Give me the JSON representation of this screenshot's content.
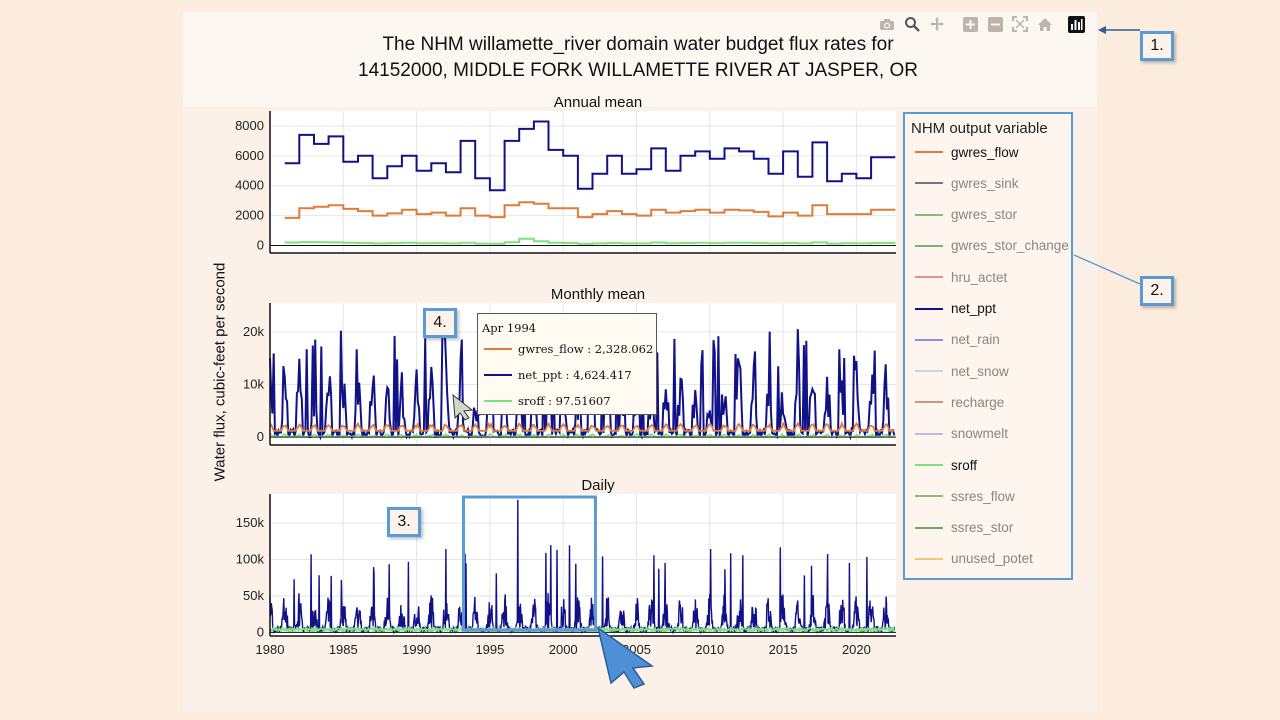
{
  "title_line1": "The NHM willamette_river domain water budget flux rates for",
  "title_line2": "14152000, MIDDLE FORK WILLAMETTE RIVER AT JASPER, OR",
  "ylabel": "Water flux, cubic-feet per second",
  "modebar": {
    "icons": [
      "camera-icon",
      "zoom-icon",
      "pan-icon",
      "zoom-in-icon",
      "zoom-out-icon",
      "autoscale-icon",
      "home-icon",
      "chart-toggle-icon"
    ]
  },
  "legend": {
    "title": "NHM output variable",
    "items": [
      {
        "label": "gwres_flow",
        "color": "#e07b39",
        "active": true
      },
      {
        "label": "gwres_sink",
        "color": "#777777",
        "active": false
      },
      {
        "label": "gwres_stor",
        "color": "#8ab87a",
        "active": false
      },
      {
        "label": "gwres_stor_change",
        "color": "#7fae7a",
        "active": false
      },
      {
        "label": "hru_actet",
        "color": "#e9908f",
        "active": false
      },
      {
        "label": "net_ppt",
        "color": "#111188",
        "active": true
      },
      {
        "label": "net_rain",
        "color": "#8b8fe3",
        "active": false
      },
      {
        "label": "net_snow",
        "color": "#c6d6ea",
        "active": false
      },
      {
        "label": "recharge",
        "color": "#d3927f",
        "active": false
      },
      {
        "label": "snowmelt",
        "color": "#c5b4e4",
        "active": false
      },
      {
        "label": "sroff",
        "color": "#7de27d",
        "active": true
      },
      {
        "label": "ssres_flow",
        "color": "#8cb98c",
        "active": false
      },
      {
        "label": "ssres_stor",
        "color": "#6fa56f",
        "active": false
      },
      {
        "label": "unused_potet",
        "color": "#f2c77a",
        "active": false
      }
    ]
  },
  "callouts": [
    "1.",
    "2.",
    "3.",
    "4."
  ],
  "tooltip": {
    "title": "Apr 1994",
    "rows": [
      {
        "label": "gwres_flow : 2,328.062",
        "color": "#e07b39"
      },
      {
        "label": "net_ppt : 4,624.417",
        "color": "#111188"
      },
      {
        "label": "sroff : 97.51607",
        "color": "#7de27d"
      }
    ]
  },
  "chart_data": [
    {
      "type": "line",
      "title": "Annual mean",
      "xlim": [
        1980,
        2022.7
      ],
      "ylim": [
        -500,
        9000
      ],
      "yticks": [
        0,
        2000,
        4000,
        6000,
        8000
      ],
      "ytick_labels": [
        "0",
        "2000",
        "4000",
        "6000",
        "8000"
      ],
      "step": true,
      "x": [
        1981,
        1982,
        1983,
        1984,
        1985,
        1986,
        1987,
        1988,
        1989,
        1990,
        1991,
        1992,
        1993,
        1994,
        1995,
        1996,
        1997,
        1998,
        1999,
        2000,
        2001,
        2002,
        2003,
        2004,
        2005,
        2006,
        2007,
        2008,
        2009,
        2010,
        2011,
        2012,
        2013,
        2014,
        2015,
        2016,
        2017,
        2018,
        2019,
        2020,
        2021,
        2022
      ],
      "series": [
        {
          "name": "net_ppt",
          "color": "#111188",
          "values": [
            5500,
            7400,
            6800,
            7300,
            5600,
            6000,
            4500,
            5300,
            6000,
            5000,
            5500,
            4900,
            7000,
            4500,
            3700,
            7000,
            7800,
            8300,
            6400,
            6000,
            3800,
            4800,
            6000,
            4800,
            5100,
            6500,
            5000,
            6000,
            6300,
            5800,
            6500,
            6300,
            5800,
            4800,
            6300,
            4600,
            6900,
            4300,
            4800,
            4500,
            5900,
            5900
          ],
          "hover": true
        },
        {
          "name": "gwres_flow",
          "color": "#e07b39",
          "values": [
            1850,
            2500,
            2600,
            2700,
            2450,
            2300,
            2000,
            2150,
            2400,
            2100,
            2200,
            2000,
            2500,
            2000,
            1900,
            2700,
            2900,
            2800,
            2500,
            2500,
            1900,
            2100,
            2300,
            2100,
            2000,
            2400,
            2200,
            2300,
            2400,
            2200,
            2400,
            2350,
            2250,
            1950,
            2200,
            2000,
            2700,
            2100,
            2100,
            2100,
            2400,
            2400
          ],
          "hover": true
        },
        {
          "name": "sroff",
          "color": "#7de27d",
          "values": [
            200,
            230,
            220,
            210,
            180,
            170,
            140,
            160,
            180,
            150,
            160,
            140,
            190,
            130,
            120,
            220,
            450,
            280,
            180,
            170,
            110,
            140,
            170,
            140,
            140,
            200,
            150,
            170,
            180,
            160,
            190,
            180,
            170,
            140,
            170,
            140,
            210,
            130,
            150,
            140,
            170,
            170
          ],
          "hover": true
        }
      ]
    },
    {
      "type": "line",
      "title": "Monthly mean",
      "xlim": [
        1980,
        2022.7
      ],
      "ylim": [
        -1500,
        25500
      ],
      "yticks": [
        0,
        10000,
        20000
      ],
      "ytick_labels": [
        "0",
        "10k",
        "20k"
      ],
      "x_start": 1980.0,
      "x_step": 0.0833333,
      "n_points": 512,
      "series": [
        {
          "name": "net_ppt",
          "color": "#111188",
          "peak": 21000,
          "mean": 5000,
          "hover": true
        },
        {
          "name": "gwres_flow",
          "color": "#e07b39",
          "peak": 3200,
          "mean": 1800,
          "hover": true
        },
        {
          "name": "sroff",
          "color": "#7de27d",
          "peak": 800,
          "mean": 100,
          "hover": true
        }
      ],
      "highlight_point": {
        "x": 1994.25,
        "series": "net_ppt",
        "value": 4624.417
      }
    },
    {
      "type": "line",
      "title": "Daily",
      "xlim": [
        1980,
        2022.7
      ],
      "ylim": [
        -5000,
        190000
      ],
      "yticks": [
        0,
        50000,
        100000,
        150000
      ],
      "ytick_labels": [
        "0",
        "50k",
        "100k",
        "150k"
      ],
      "xticks": [
        1980,
        1985,
        1990,
        1995,
        2000,
        2005,
        2010,
        2015,
        2020
      ],
      "xtick_labels": [
        "1980",
        "1985",
        "1990",
        "1995",
        "2000",
        "2005",
        "2010",
        "2015",
        "2020"
      ],
      "series": [
        {
          "name": "net_ppt",
          "color": "#111188",
          "peak": 182000,
          "mean": 20000,
          "hover": true
        },
        {
          "name": "sroff",
          "color": "#7de27d",
          "peak": 9000,
          "mean": 2000,
          "hover": true
        }
      ],
      "selection": {
        "x0": 1993.2,
        "x1": 2002.2
      }
    }
  ]
}
